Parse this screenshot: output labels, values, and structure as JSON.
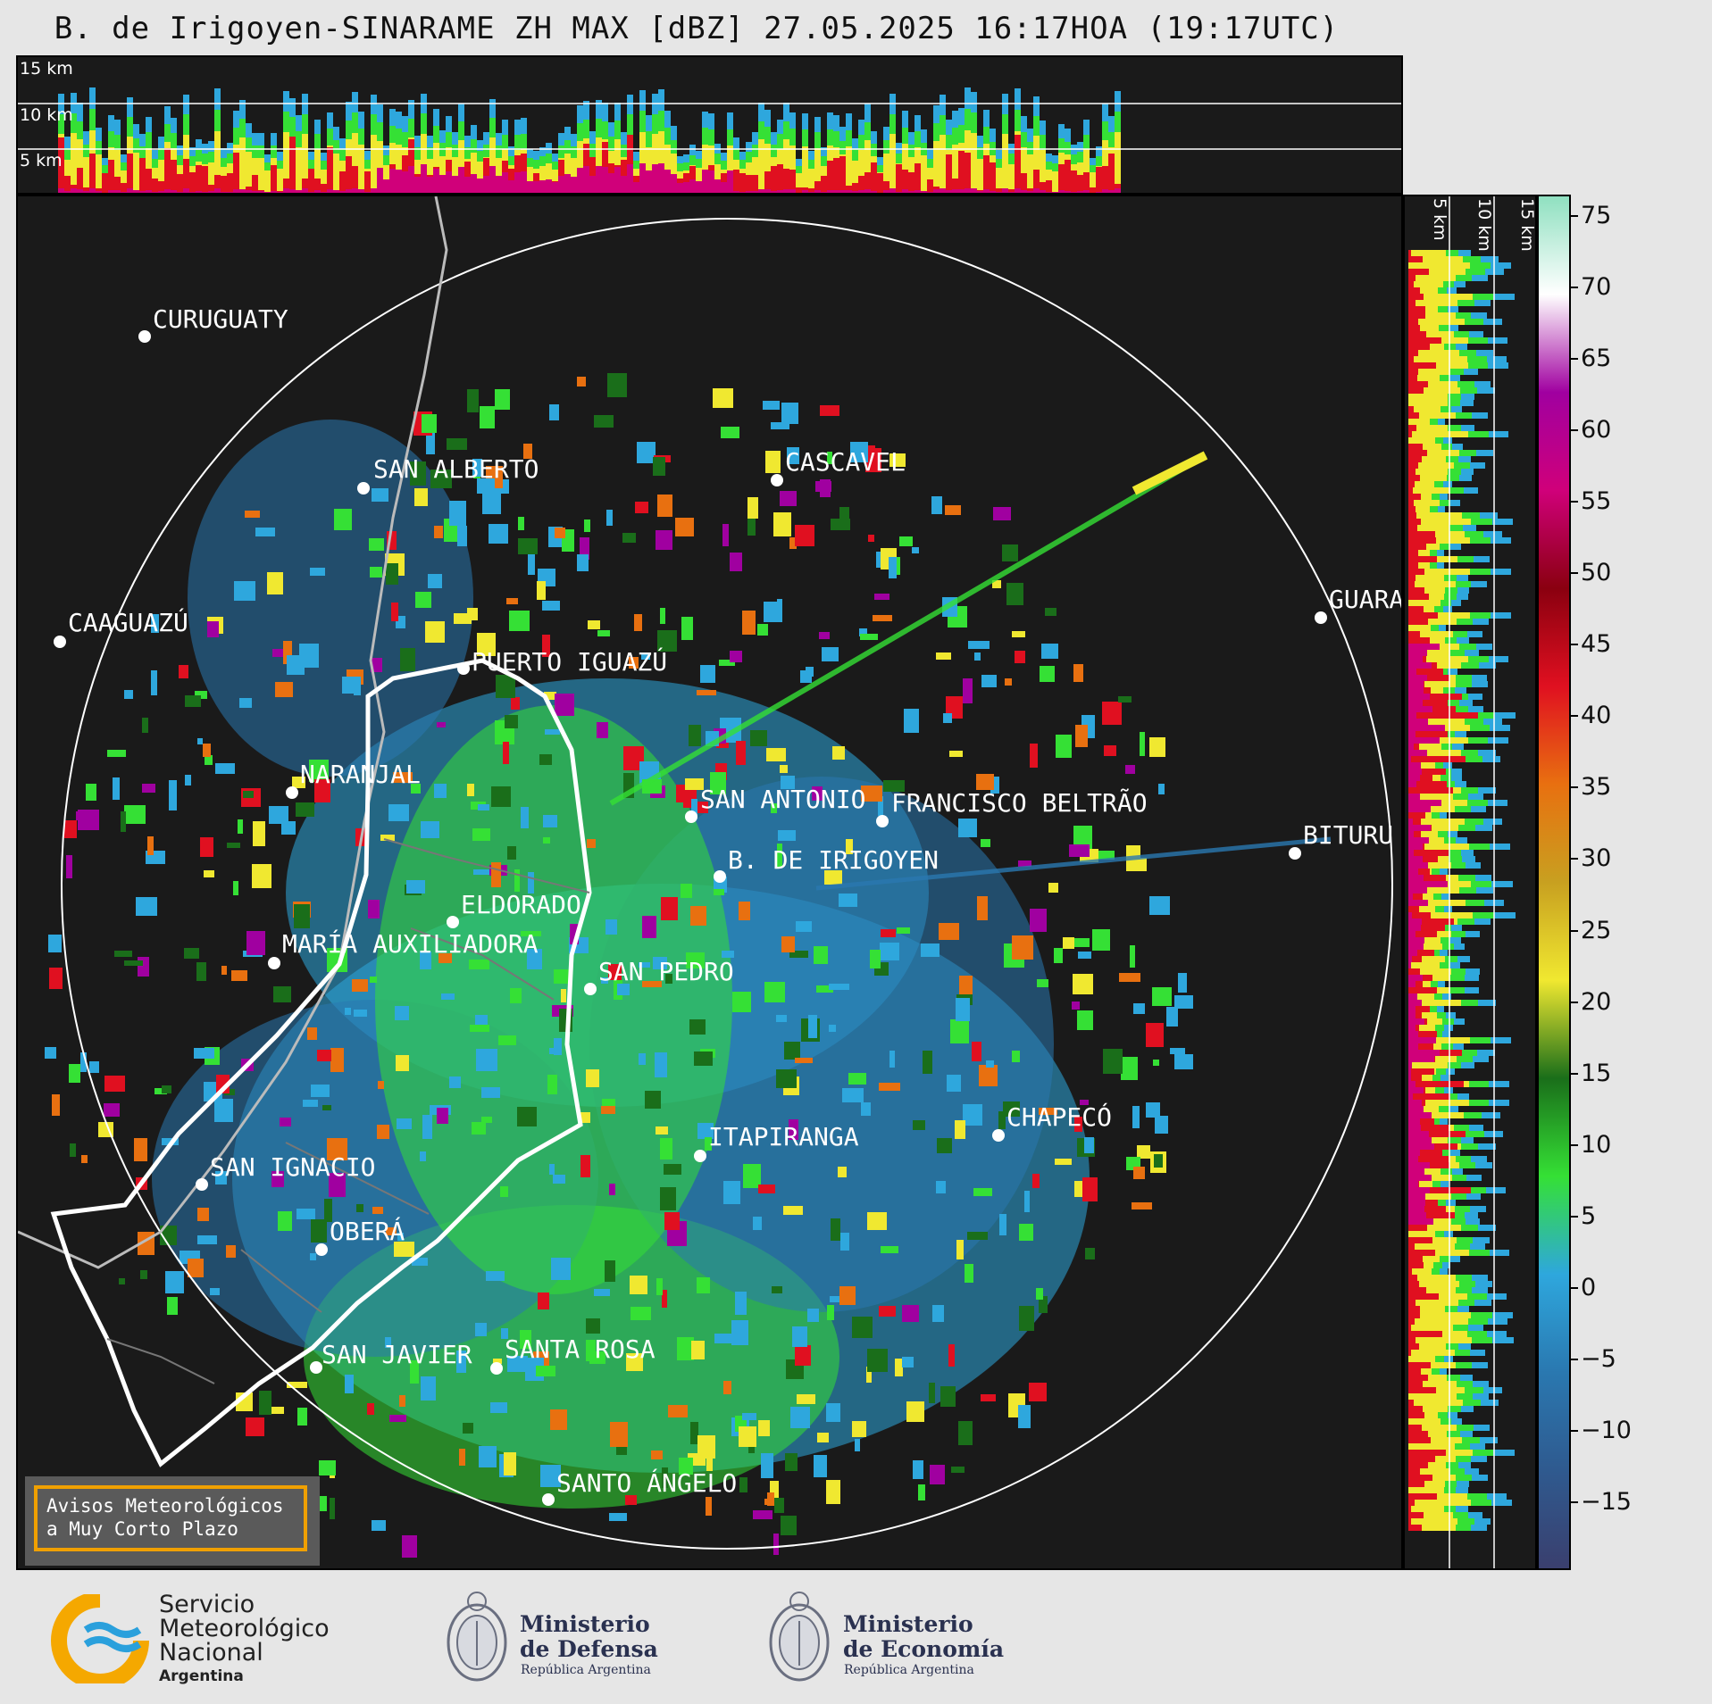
{
  "title": "B. de Irigoyen-SINARAME ZH MAX [dBZ] 27.05.2025 16:17HOA (19:17UTC)",
  "height_labels": {
    "top": [
      "15 km",
      "10 km",
      "5 km"
    ],
    "side": [
      "5 km",
      "10 km",
      "15 km"
    ]
  },
  "cities": [
    {
      "name": "CURUGUATY"
    },
    {
      "name": "SAN ALBERTO"
    },
    {
      "name": "CASCAVEL"
    },
    {
      "name": "CAAGUAZÚ"
    },
    {
      "name": "GUARA"
    },
    {
      "name": "PUERTO IGUAZÚ"
    },
    {
      "name": "NARANJAL"
    },
    {
      "name": "SAN ANTONIO"
    },
    {
      "name": "FRANCISCO BELTRÃO"
    },
    {
      "name": "BITURU"
    },
    {
      "name": "B. DE IRIGOYEN"
    },
    {
      "name": "ELDORADO"
    },
    {
      "name": "MARÍA AUXILIADORA"
    },
    {
      "name": "SAN PEDRO"
    },
    {
      "name": "CHAPECÓ"
    },
    {
      "name": "ITAPIRANGA"
    },
    {
      "name": "SAN IGNACIO"
    },
    {
      "name": "OBERÁ"
    },
    {
      "name": "SAN JAVIER"
    },
    {
      "name": "SANTA ROSA"
    },
    {
      "name": "SANTO ÁNGELO"
    }
  ],
  "colorbar": {
    "unit": "dBZ",
    "ticks": [
      "75",
      "70",
      "65",
      "60",
      "55",
      "50",
      "45",
      "40",
      "35",
      "30",
      "25",
      "20",
      "15",
      "10",
      "5",
      "0",
      "−5",
      "−10",
      "−15"
    ],
    "stops": [
      "#3a3f6e",
      "#2f5a8f",
      "#2a78b0",
      "#2ea7dd",
      "#35e035",
      "#1a6e1a",
      "#f0e830",
      "#c8a020",
      "#e87010",
      "#e01020",
      "#8a0010",
      "#d0007a",
      "#a000a0",
      "#ffffff",
      "#8fe0c0"
    ]
  },
  "alert": {
    "line1": "Avisos Meteorológicos",
    "line2": "a Muy Corto Plazo"
  },
  "logos": {
    "smn": {
      "line1": "Servicio",
      "line2": "Meteorológico",
      "line3": "Nacional",
      "line4": "Argentina"
    },
    "defensa": {
      "line1": "Ministerio",
      "line2": "de Defensa",
      "line3": "República Argentina"
    },
    "economia": {
      "line1": "Ministerio",
      "line2": "de Economía",
      "line3": "República Argentina"
    }
  },
  "colors": {
    "background": "#e6e6e6",
    "panel": "#1a1a1a",
    "alert_border": "#f0a000"
  }
}
